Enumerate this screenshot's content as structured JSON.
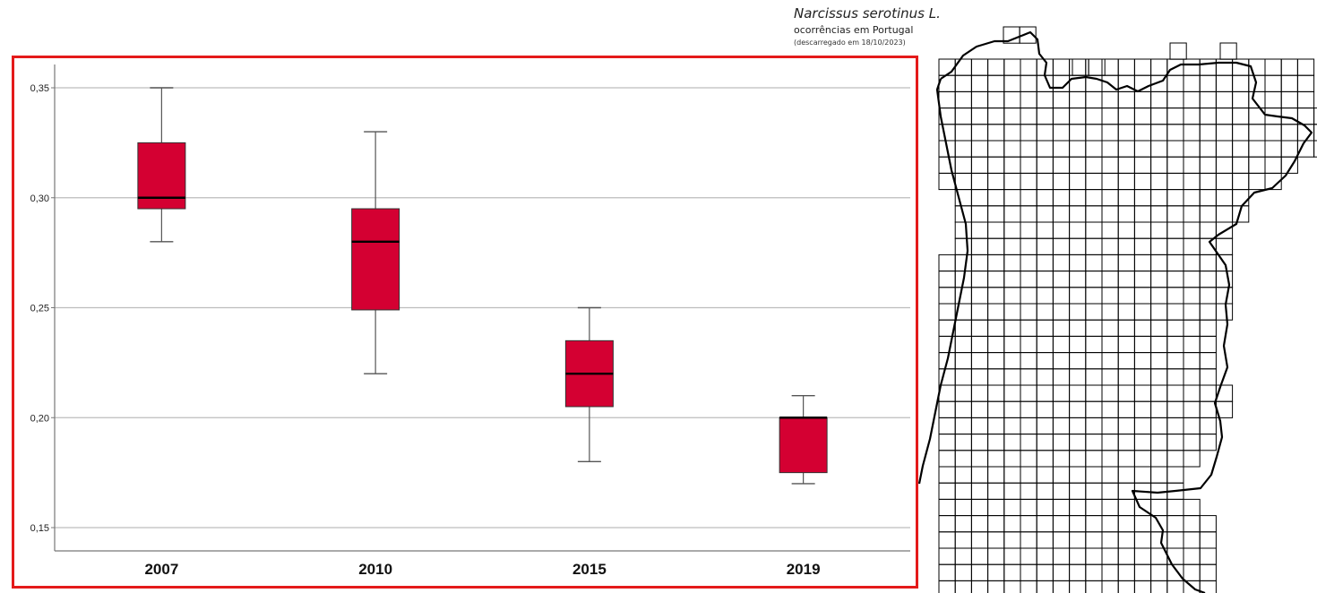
{
  "map": {
    "title": "Narcissus serotinus L.",
    "subtitle": "ocorrências em Portugal",
    "note": "(descarregado em 18/10/2023)"
  },
  "colors": {
    "box_fill": "#d40032",
    "highlight_border": "#e41a1a",
    "grid": "#bdbdbd",
    "whisker": "#555555"
  },
  "chart_data": {
    "type": "boxplot",
    "title": "",
    "xlabel": "",
    "ylabel": "",
    "ylim": [
      0.14,
      0.36
    ],
    "y_ticks": [
      {
        "value": 0.15,
        "label": "0,15"
      },
      {
        "value": 0.2,
        "label": "0,20"
      },
      {
        "value": 0.25,
        "label": "0,25"
      },
      {
        "value": 0.3,
        "label": "0,30"
      },
      {
        "value": 0.35,
        "label": "0,35"
      }
    ],
    "grid": true,
    "categories": [
      "2007",
      "2010",
      "2015",
      "2019"
    ],
    "boxes": [
      {
        "category": "2007",
        "min": 0.28,
        "q1": 0.295,
        "median": 0.3,
        "q3": 0.325,
        "max": 0.35
      },
      {
        "category": "2010",
        "min": 0.22,
        "q1": 0.249,
        "median": 0.28,
        "q3": 0.295,
        "max": 0.33
      },
      {
        "category": "2015",
        "min": 0.18,
        "q1": 0.205,
        "median": 0.22,
        "q3": 0.235,
        "max": 0.25
      },
      {
        "category": "2019",
        "min": 0.17,
        "q1": 0.175,
        "median": 0.2,
        "q3": 0.2,
        "max": 0.21
      }
    ]
  }
}
